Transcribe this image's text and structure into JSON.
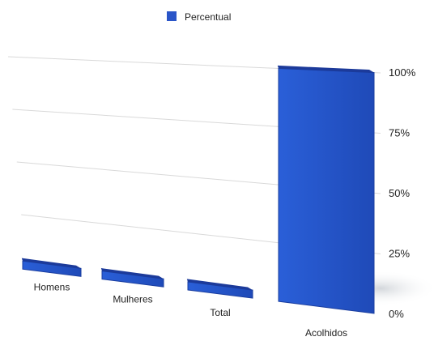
{
  "chart_data": {
    "type": "bar",
    "categories": [
      "Homens",
      "Mulheres",
      "Total",
      "Acolhidos"
    ],
    "series": [
      {
        "name": "Percentual",
        "values": [
          0,
          0,
          0,
          100
        ]
      }
    ],
    "ylim": [
      0,
      100
    ],
    "yticks": [
      "0%",
      "25%",
      "50%",
      "75%",
      "100%"
    ],
    "grid": true,
    "legend": "top-center",
    "style": "3d-perspective",
    "colors": {
      "bar": "#2a55c8",
      "bar_top": "#1c3a9a",
      "bar_side": "#2f64d8",
      "grid": "#d9d9d9"
    }
  }
}
